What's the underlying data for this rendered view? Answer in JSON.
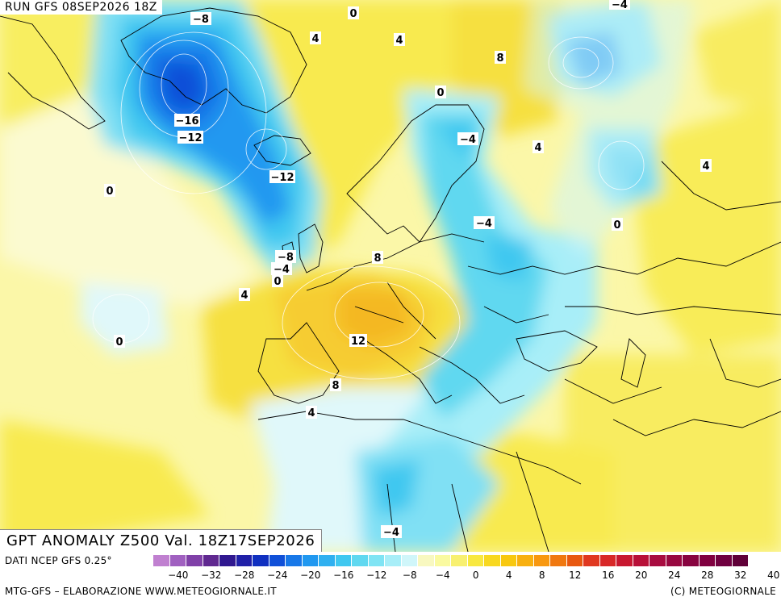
{
  "header": {
    "run_title": "RUN GFS 08SEP2026 18Z",
    "valid_title": "GPT ANOMALY Z500 Val. 18Z17SEP2026"
  },
  "contour_labels": [
    {
      "text": "−8"
    },
    {
      "text": "0"
    },
    {
      "text": "4"
    },
    {
      "text": "4"
    },
    {
      "text": "−4"
    },
    {
      "text": "8"
    },
    {
      "text": "0"
    },
    {
      "text": "−16"
    },
    {
      "text": "−12"
    },
    {
      "text": "−4"
    },
    {
      "text": "4"
    },
    {
      "text": "−12"
    },
    {
      "text": "0"
    },
    {
      "text": "4"
    },
    {
      "text": "−4"
    },
    {
      "text": "0"
    },
    {
      "text": "−8"
    },
    {
      "text": "−4"
    },
    {
      "text": "0"
    },
    {
      "text": "8"
    },
    {
      "text": "4"
    },
    {
      "text": "0"
    },
    {
      "text": "12"
    },
    {
      "text": "8"
    },
    {
      "text": "4"
    },
    {
      "text": "−4"
    }
  ],
  "footer": {
    "data_source": "DATI NCEP GFS 0.25°",
    "credit": "MTG-GFS – ELABORAZIONE WWW.METEOGIORNALE.IT",
    "copyright": "(C) METEOGIORNALE"
  },
  "legend": {
    "ticks": [
      "−40",
      "−32",
      "−28",
      "−24",
      "−20",
      "−16",
      "−12",
      "−8",
      "−4",
      "0",
      "4",
      "8",
      "12",
      "16",
      "20",
      "24",
      "28",
      "32",
      "40"
    ],
    "colors": [
      "#c080d0",
      "#a060c0",
      "#8040a8",
      "#602890",
      "#301890",
      "#2020a8",
      "#1030c0",
      "#1050d8",
      "#1878e8",
      "#2098f0",
      "#30b0f0",
      "#40c8f0",
      "#60d8f0",
      "#80e4f4",
      "#a8eef8",
      "#d0f6fa",
      "#f8f8c0",
      "#fafaa0",
      "#f8f070",
      "#f8e840",
      "#f8d820",
      "#f8c810",
      "#f8b010",
      "#f89810",
      "#f07810",
      "#e85810",
      "#e03820",
      "#d82828",
      "#c81830",
      "#b81038",
      "#a80c40",
      "#980840",
      "#880440",
      "#800040",
      "#700040",
      "#600038"
    ]
  },
  "colors": {
    "cold_deep": "#1030c0",
    "cold_mid": "#1878e8",
    "cold_light": "#60d8f0",
    "cold_pale": "#d0f6fa",
    "neutral": "#fafac8",
    "warm_light": "#f8f070",
    "warm_mid": "#f8d820",
    "warm_deep": "#f8b010"
  }
}
